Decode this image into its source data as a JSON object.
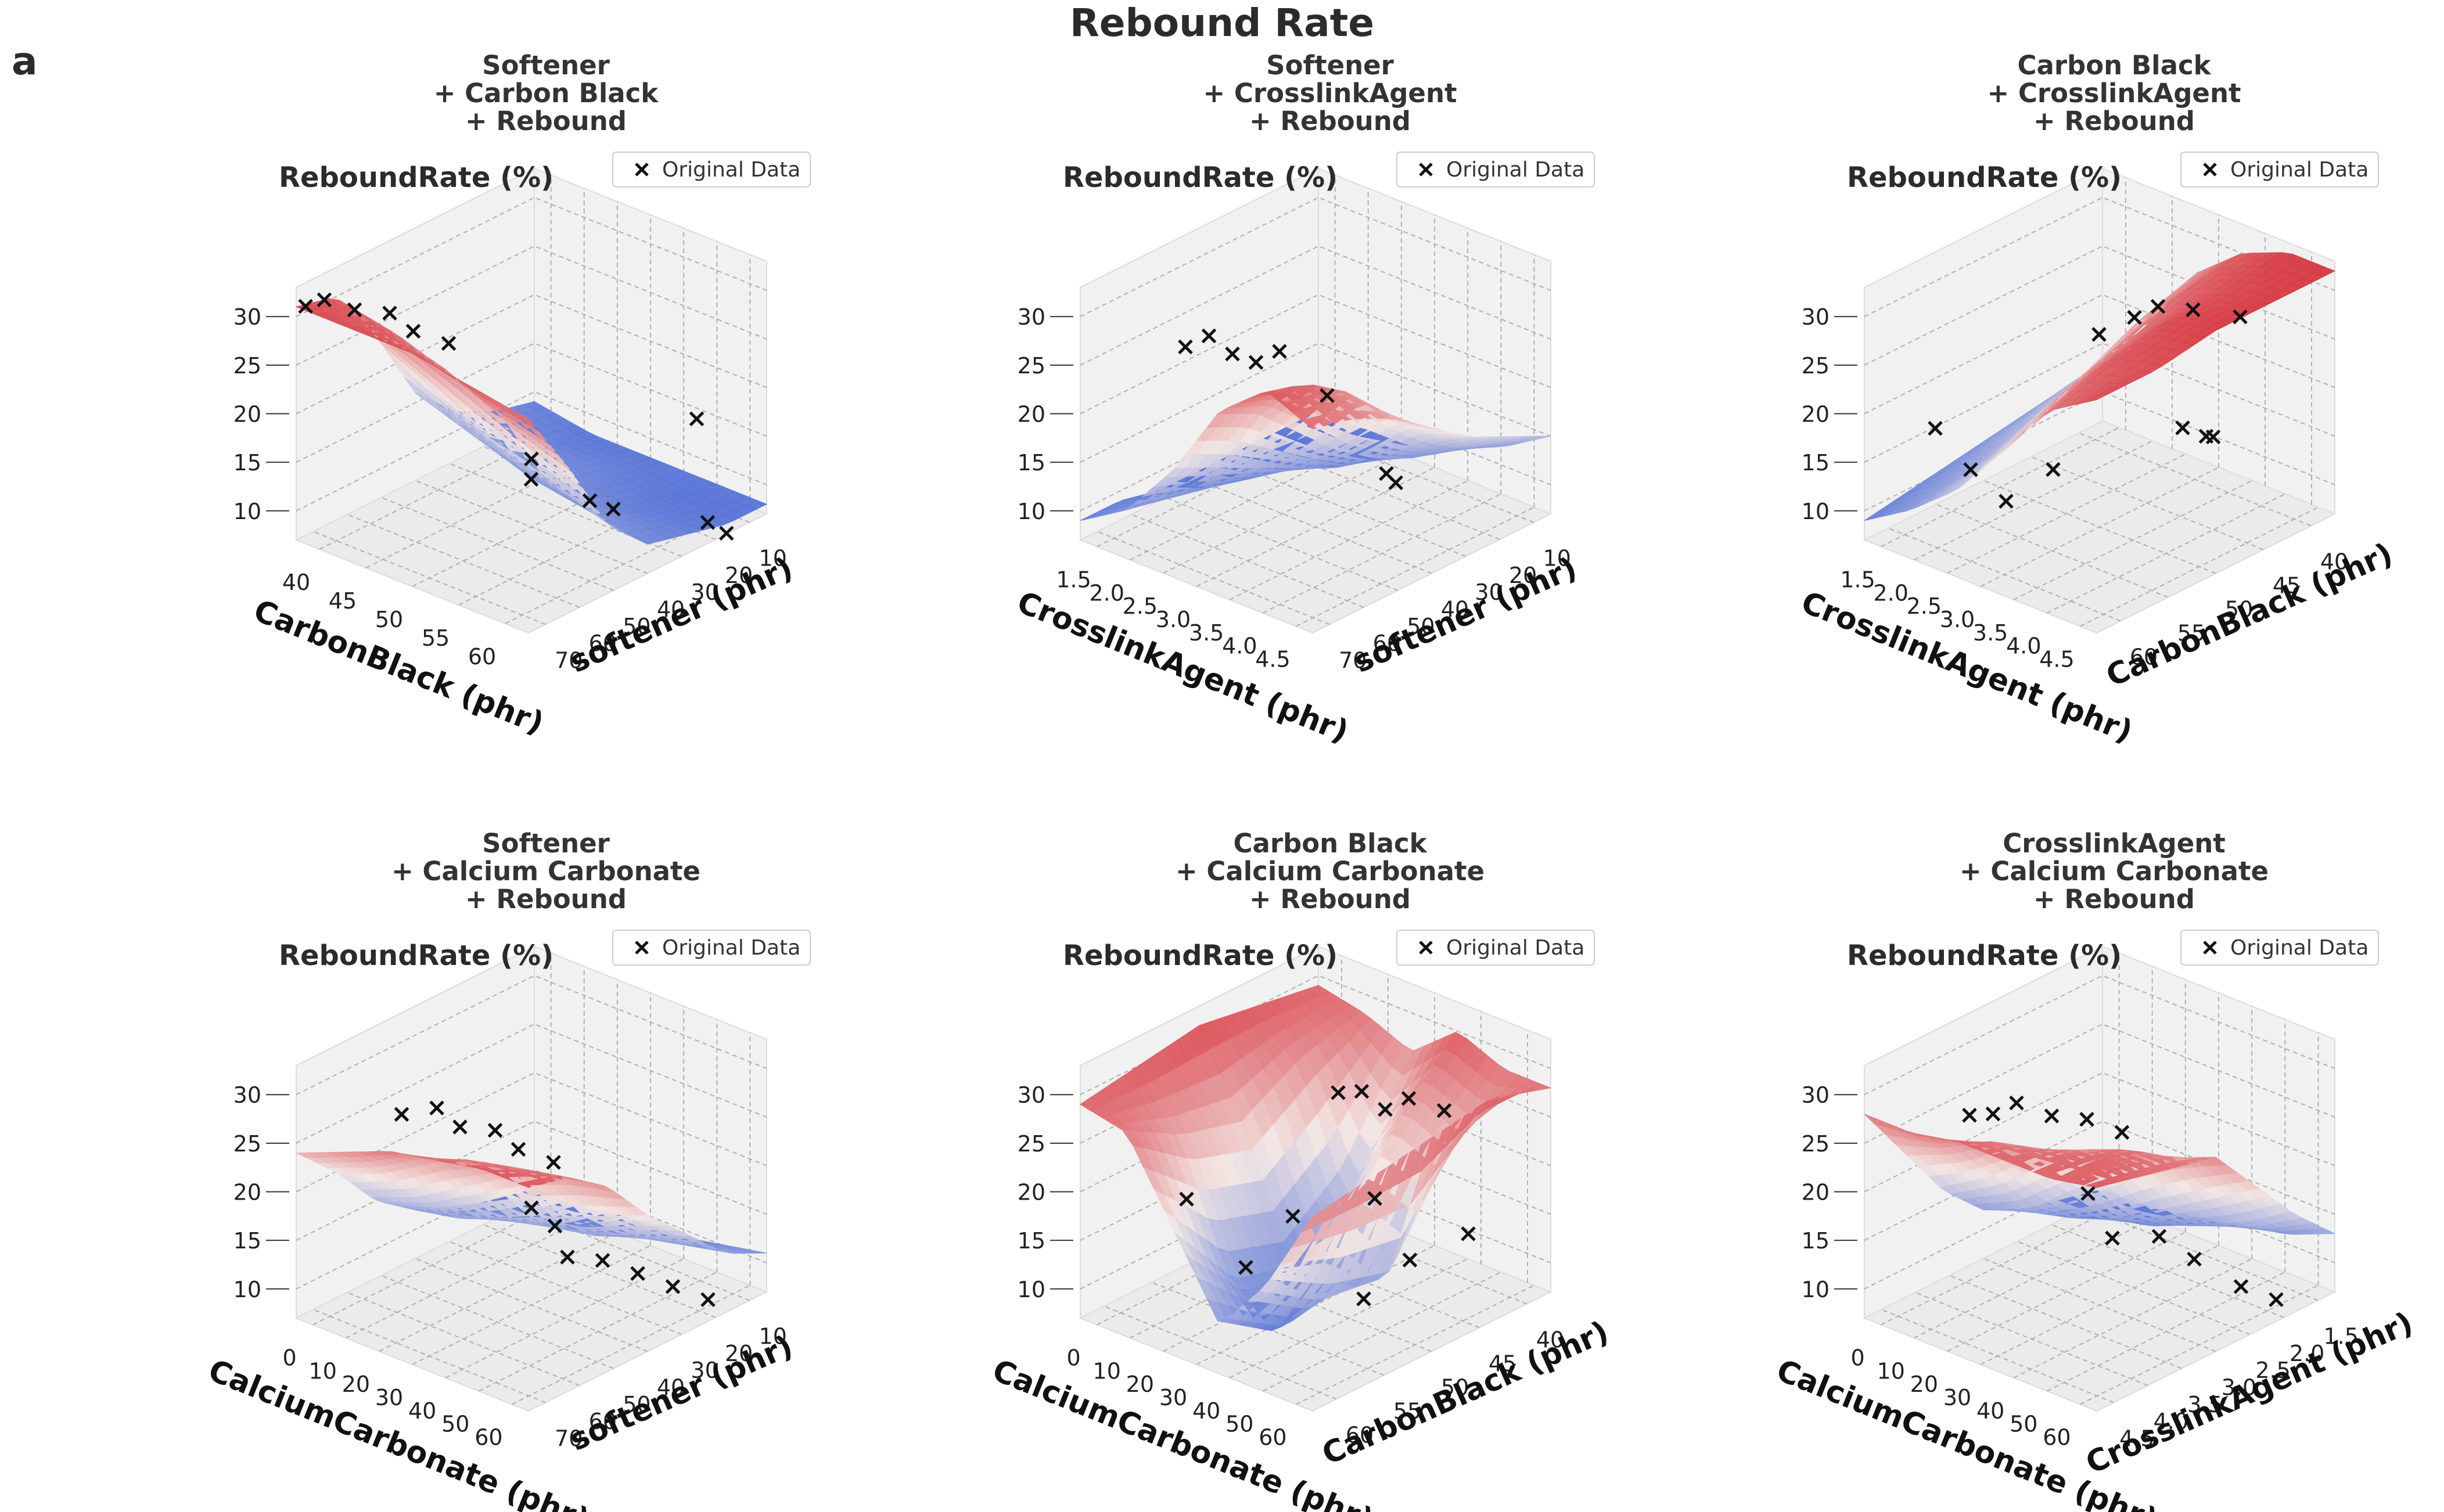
{
  "figure": {
    "title": "Rebound Rate",
    "panel_label": "a",
    "colors": {
      "high": "#d42a33",
      "mid": "#f2e6e3",
      "low": "#4a6bd6",
      "marker": "#111111"
    }
  },
  "chart_data": [
    {
      "type": "surface3d",
      "title": [
        "Softener",
        "+ Carbon Black",
        "+ Rebound"
      ],
      "zlabel": "ReboundRate (%)",
      "legend": "Original Data",
      "legend_loc": "top-right",
      "xlabel": "CarbonBlack (phr)",
      "ylabel": "softener (phr)",
      "x_ticks": [
        "40",
        "45",
        "50",
        "55",
        "60"
      ],
      "y_ticks": [
        "70",
        "60",
        "50",
        "40",
        "30",
        "20",
        "10"
      ],
      "z_ticks": [
        "10",
        "15",
        "20",
        "25",
        "30"
      ],
      "zlim": [
        7,
        33
      ],
      "surface": [
        [
          31,
          31,
          31,
          30,
          29
        ],
        [
          30,
          29,
          27,
          24,
          22
        ],
        [
          24,
          21,
          18,
          16,
          14
        ],
        [
          16,
          14,
          12,
          11,
          10
        ],
        [
          12,
          11,
          10,
          9,
          9
        ],
        [
          10,
          9,
          9,
          8,
          8
        ],
        [
          9,
          8,
          8,
          8,
          8
        ]
      ],
      "points": [
        [
          0.02,
          0.02,
          31
        ],
        [
          0.08,
          0.04,
          32
        ],
        [
          0.2,
          0.05,
          32
        ],
        [
          0.3,
          0.1,
          32
        ],
        [
          0.35,
          0.15,
          30
        ],
        [
          0.4,
          0.25,
          28
        ],
        [
          0.5,
          0.5,
          14
        ],
        [
          0.55,
          0.45,
          13
        ],
        [
          0.7,
          0.55,
          11
        ],
        [
          0.75,
          0.6,
          10
        ],
        [
          0.75,
          0.95,
          15
        ],
        [
          0.9,
          0.85,
          7
        ],
        [
          0.95,
          0.88,
          6
        ]
      ]
    },
    {
      "type": "surface3d",
      "title": [
        "Softener",
        "+ CrosslinkAgent",
        "+ Rebound"
      ],
      "zlabel": "ReboundRate (%)",
      "legend": "Original Data",
      "legend_loc": "top-right",
      "xlabel": "CrosslinkAgent (phr)",
      "ylabel": "softener (phr)",
      "x_ticks": [
        "1.5",
        "2.0",
        "2.5",
        "3.0",
        "3.5",
        "4.0",
        "4.5"
      ],
      "y_ticks": [
        "70",
        "60",
        "50",
        "40",
        "30",
        "20",
        "10"
      ],
      "z_ticks": [
        "10",
        "15",
        "20",
        "25",
        "30"
      ],
      "zlim": [
        7,
        33
      ],
      "surface": [
        [
          9,
          12,
          18,
          26,
          30,
          28
        ],
        [
          9,
          11,
          16,
          24,
          29,
          27
        ],
        [
          8,
          10,
          14,
          20,
          26,
          25
        ],
        [
          8,
          9,
          12,
          16,
          21,
          22
        ],
        [
          8,
          9,
          10,
          13,
          17,
          19
        ],
        [
          8,
          8,
          9,
          11,
          14,
          17
        ],
        [
          8,
          8,
          9,
          10,
          12,
          15
        ]
      ],
      "points": [
        [
          0.35,
          0.1,
          29
        ],
        [
          0.4,
          0.15,
          30
        ],
        [
          0.45,
          0.2,
          28
        ],
        [
          0.5,
          0.25,
          27
        ],
        [
          0.55,
          0.3,
          28
        ],
        [
          0.55,
          0.5,
          21
        ],
        [
          0.6,
          0.7,
          11
        ],
        [
          0.62,
          0.72,
          10
        ]
      ]
    },
    {
      "type": "surface3d",
      "title": [
        "Carbon Black",
        "+ CrosslinkAgent",
        "+ Rebound"
      ],
      "zlabel": "ReboundRate (%)",
      "legend": "Original Data",
      "legend_loc": "top-right",
      "xlabel": "CrosslinkAgent (phr)",
      "ylabel": "CarbonBlack (phr)",
      "x_ticks": [
        "1.5",
        "2.0",
        "2.5",
        "3.0",
        "3.5",
        "4.0",
        "4.5"
      ],
      "y_ticks": [
        "60",
        "55",
        "50",
        "45",
        "40"
      ],
      "z_ticks": [
        "10",
        "15",
        "20",
        "25",
        "30"
      ],
      "zlim": [
        7,
        33
      ],
      "surface": [
        [
          9,
          12,
          16,
          22,
          28,
          31
        ],
        [
          10,
          13,
          18,
          25,
          30,
          31
        ],
        [
          11,
          15,
          21,
          27,
          31,
          32
        ],
        [
          12,
          17,
          24,
          29,
          31,
          32
        ],
        [
          13,
          19,
          26,
          30,
          32,
          32
        ]
      ],
      "points": [
        [
          0.1,
          0.2,
          17
        ],
        [
          0.15,
          0.3,
          12
        ],
        [
          0.2,
          0.4,
          8
        ],
        [
          0.3,
          0.5,
          11
        ],
        [
          0.6,
          0.4,
          29
        ],
        [
          0.65,
          0.5,
          30
        ],
        [
          0.7,
          0.55,
          31
        ],
        [
          0.8,
          0.6,
          31
        ],
        [
          0.9,
          0.7,
          30
        ],
        [
          0.55,
          0.8,
          14
        ],
        [
          0.6,
          0.85,
          13
        ],
        [
          0.62,
          0.86,
          13
        ]
      ]
    },
    {
      "type": "surface3d",
      "title": [
        "Softener",
        "+ Calcium Carbonate",
        "+ Rebound"
      ],
      "zlabel": "ReboundRate (%)",
      "legend": "Original Data",
      "legend_loc": "top-right",
      "xlabel": "CalciumCarbonate (phr)",
      "ylabel": "softener (phr)",
      "x_ticks": [
        "0",
        "10",
        "20",
        "30",
        "40",
        "50",
        "60"
      ],
      "y_ticks": [
        "70",
        "60",
        "50",
        "40",
        "30",
        "20",
        "10"
      ],
      "z_ticks": [
        "10",
        "15",
        "20",
        "25",
        "30"
      ],
      "zlim": [
        7,
        33
      ],
      "surface": [
        [
          24,
          26,
          28,
          29,
          30,
          30
        ],
        [
          20,
          22,
          25,
          27,
          28,
          29
        ],
        [
          15,
          17,
          20,
          23,
          25,
          26
        ],
        [
          12,
          13,
          15,
          17,
          19,
          21
        ],
        [
          10,
          11,
          12,
          13,
          15,
          17
        ],
        [
          9,
          9,
          10,
          11,
          12,
          13
        ],
        [
          8,
          8,
          9,
          9,
          10,
          11
        ]
      ],
      "points": [
        [
          0.3,
          0.15,
          29
        ],
        [
          0.4,
          0.2,
          30
        ],
        [
          0.5,
          0.2,
          29
        ],
        [
          0.6,
          0.25,
          29
        ],
        [
          0.7,
          0.25,
          28
        ],
        [
          0.8,
          0.3,
          27
        ],
        [
          0.5,
          0.5,
          17
        ],
        [
          0.55,
          0.55,
          15
        ],
        [
          0.45,
          0.7,
          9
        ],
        [
          0.55,
          0.75,
          9
        ],
        [
          0.65,
          0.8,
          8
        ],
        [
          0.75,
          0.85,
          7
        ],
        [
          0.85,
          0.9,
          6
        ]
      ]
    },
    {
      "type": "surface3d",
      "title": [
        "Carbon Black",
        "+ Calcium Carbonate",
        "+ Rebound"
      ],
      "zlabel": "ReboundRate (%)",
      "legend": "Original Data",
      "legend_loc": "top-right",
      "xlabel": "CalciumCarbonate (phr)",
      "ylabel": "CarbonBlack (phr)",
      "x_ticks": [
        "0",
        "10",
        "20",
        "30",
        "40",
        "50",
        "60"
      ],
      "y_ticks": [
        "60",
        "55",
        "50",
        "45",
        "40"
      ],
      "z_ticks": [
        "10",
        "15",
        "20",
        "25",
        "30"
      ],
      "zlim": [
        7,
        33
      ],
      "surface": [
        [
          29,
          28,
          20,
          12,
          18,
          27
        ],
        [
          30,
          24,
          12,
          8,
          14,
          28
        ],
        [
          31,
          22,
          10,
          14,
          12,
          29
        ],
        [
          30,
          26,
          15,
          24,
          22,
          30
        ],
        [
          29,
          28,
          26,
          30,
          28,
          28
        ]
      ],
      "points": [
        [
          0.15,
          0.3,
          17
        ],
        [
          0.2,
          0.5,
          8
        ],
        [
          0.3,
          0.6,
          13
        ],
        [
          0.4,
          0.8,
          3
        ],
        [
          0.55,
          0.7,
          16
        ],
        [
          0.65,
          0.75,
          10
        ],
        [
          0.7,
          0.4,
          32
        ],
        [
          0.75,
          0.45,
          32
        ],
        [
          0.8,
          0.5,
          30
        ],
        [
          0.85,
          0.55,
          31
        ],
        [
          0.9,
          0.65,
          29
        ],
        [
          0.85,
          0.8,
          14
        ]
      ]
    },
    {
      "type": "surface3d",
      "title": [
        "CrosslinkAgent",
        "+ Calcium Carbonate",
        "+ Rebound"
      ],
      "zlabel": "ReboundRate (%)",
      "legend": "Original Data",
      "legend_loc": "top-right",
      "xlabel": "CalciumCarbonate (phr)",
      "ylabel": "CrosslinkAgent (phr)",
      "x_ticks": [
        "0",
        "10",
        "20",
        "30",
        "40",
        "50",
        "60"
      ],
      "y_ticks": [
        "4.5",
        "4.0",
        "3.5",
        "3.0",
        "2.5",
        "2.0",
        "1.5"
      ],
      "z_ticks": [
        "10",
        "15",
        "20",
        "25",
        "30"
      ],
      "zlim": [
        7,
        33
      ],
      "surface": [
        [
          28,
          28,
          29,
          29,
          29,
          30
        ],
        [
          22,
          24,
          27,
          28,
          29,
          29
        ],
        [
          16,
          19,
          23,
          26,
          28,
          28
        ],
        [
          12,
          14,
          18,
          22,
          25,
          27
        ],
        [
          10,
          11,
          13,
          16,
          19,
          22
        ],
        [
          9,
          9,
          10,
          12,
          14,
          17
        ],
        [
          8,
          8,
          9,
          10,
          11,
          13
        ]
      ],
      "points": [
        [
          0.35,
          0.1,
          30
        ],
        [
          0.4,
          0.15,
          30
        ],
        [
          0.45,
          0.2,
          31
        ],
        [
          0.55,
          0.25,
          30
        ],
        [
          0.65,
          0.3,
          30
        ],
        [
          0.75,
          0.35,
          29
        ],
        [
          0.45,
          0.5,
          18
        ],
        [
          0.35,
          0.7,
          10
        ],
        [
          0.5,
          0.75,
          11
        ],
        [
          0.6,
          0.8,
          9
        ],
        [
          0.75,
          0.85,
          7
        ],
        [
          0.85,
          0.9,
          6
        ]
      ]
    }
  ]
}
